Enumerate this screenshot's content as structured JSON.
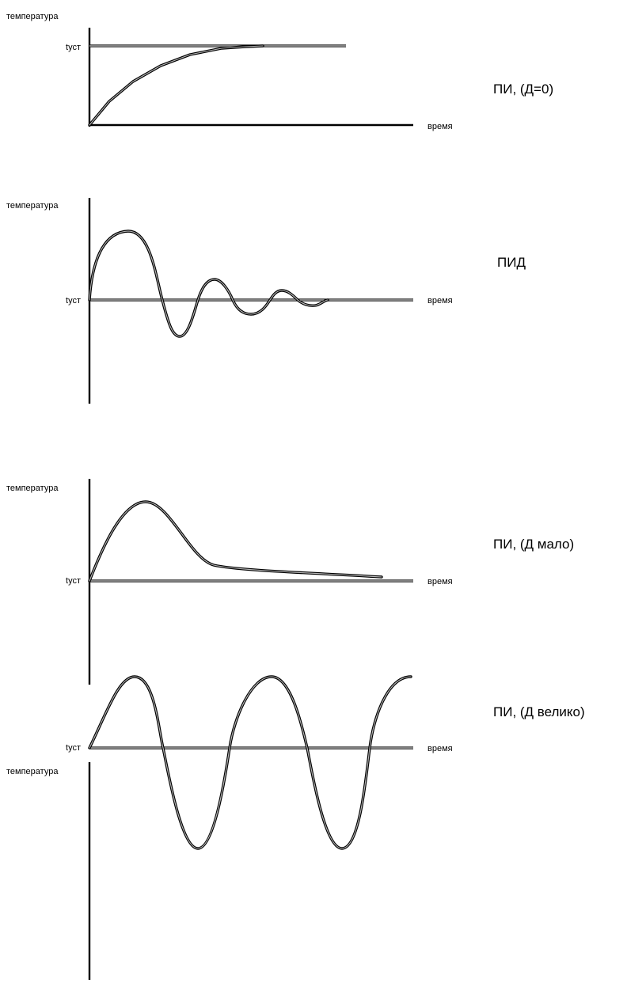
{
  "colors": {
    "ink": "#000000",
    "background": "#ffffff"
  },
  "panels": [
    {
      "id": "pi",
      "y_label": "температура",
      "setpoint_label": "tуст",
      "x_label": "время",
      "caption": "ПИ, (Д=0)",
      "response": "monotonic rise to setpoint"
    },
    {
      "id": "pid",
      "y_label": "температура",
      "setpoint_label": "tуст",
      "x_label": "время",
      "caption": "ПИД",
      "response": "damped oscillation around setpoint"
    },
    {
      "id": "pi-small",
      "y_label": "температура",
      "setpoint_label": "tуст",
      "x_label": "время",
      "caption": "ПИ, (Д мало)",
      "response": "overshoot then slow decay toward setpoint"
    },
    {
      "id": "pi-large",
      "y_label": "температура",
      "setpoint_label": "tуст",
      "x_label": "время",
      "caption": "ПИ, (Д велико)",
      "response": "sustained oscillation around setpoint"
    }
  ]
}
